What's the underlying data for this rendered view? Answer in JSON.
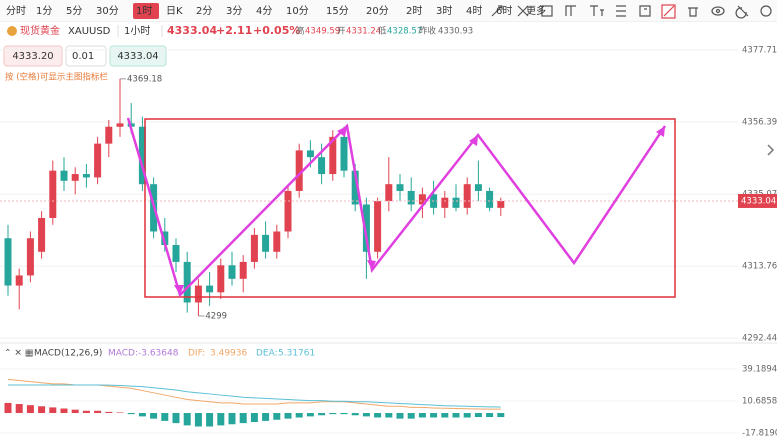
{
  "toolbar": {
    "intervals": [
      "分时",
      "1分",
      "5分",
      "30分",
      "1时",
      "日K",
      "2分",
      "3分",
      "4分",
      "10分",
      "15分",
      "20分",
      "2时",
      "3时",
      "4时",
      "6时",
      "更多"
    ],
    "active": 4
  },
  "header": {
    "name": "现货黄金",
    "symbol": "XAUUSD",
    "period": "1小时",
    "price": "4333.04",
    "change": "+2.11",
    "change_pct": "+0.05%",
    "high_label": "高",
    "high": 4349.59,
    "open_label": "开",
    "open": 4331.24,
    "low_label": "低",
    "low": 4328.57,
    "prev_label": "昨收",
    "prev": 4330.93
  },
  "quote": {
    "bid": "4333.20",
    "qty": "0.01",
    "ask": "4333.04"
  },
  "hint": "按 (空格)可显示主图指标栏",
  "chart_data": [
    {
      "type": "candlestick",
      "up_color": "#e0424f",
      "down_color": "#26a69a",
      "open": [
        4322,
        4308,
        4311,
        4318,
        4328,
        4342,
        4339,
        4341,
        4340,
        4350,
        4355,
        4356,
        4355,
        4338,
        4324,
        4320,
        4315,
        4303,
        4308,
        4306,
        4314,
        4310,
        4315,
        4323,
        4318,
        4324,
        4336,
        4348,
        4346,
        4341,
        4352,
        4342,
        4332,
        4318,
        4333,
        4338,
        4336,
        4332,
        4335,
        4331,
        4334,
        4331,
        4338,
        4336,
        4331
      ],
      "high": [
        4326,
        4313,
        4324,
        4330,
        4345,
        4346,
        4343,
        4344,
        4352,
        4357,
        4369.18,
        4362,
        4358,
        4340,
        4328,
        4322,
        4318,
        4310,
        4312,
        4316,
        4318,
        4317,
        4325,
        4327,
        4326,
        4338,
        4350,
        4351,
        4350,
        4354,
        4355,
        4344,
        4334,
        4334,
        4346,
        4341,
        4340,
        4337,
        4339,
        4336,
        4338,
        4340,
        4345,
        4337,
        4334
      ],
      "low": [
        4305,
        4300.97,
        4309,
        4316,
        4326,
        4336,
        4335,
        4337,
        4338,
        4346,
        4352,
        4353,
        4336,
        4322,
        4318,
        4312,
        4300,
        4299,
        4302,
        4304,
        4308,
        4306,
        4313,
        4316,
        4316,
        4322,
        4334,
        4343,
        4338,
        4339,
        4340,
        4330,
        4310,
        4316,
        4330,
        4333,
        4330,
        4328,
        4329,
        4328,
        4330,
        4329,
        4333,
        4330,
        4328.57
      ],
      "close": [
        4308,
        4311,
        4322,
        4328,
        4342,
        4339,
        4341,
        4340,
        4350,
        4355,
        4356,
        4355,
        4338,
        4324,
        4320,
        4315,
        4303,
        4308,
        4306,
        4314,
        4310,
        4315,
        4323,
        4318,
        4324,
        4336,
        4348,
        4346,
        4341,
        4352,
        4342,
        4332,
        4318,
        4333,
        4338,
        4336,
        4332,
        4335,
        4331,
        4334,
        4331,
        4338,
        4336,
        4331,
        4333.04
      ],
      "ylim": [
        4291.3,
        4380.67
      ],
      "yticks": [
        4377.71,
        4356.39,
        4335.07,
        4313.76,
        4292.44
      ],
      "grid": true
    },
    {
      "type": "macd",
      "title": "MACD(12,26,9)",
      "hist_name": "MACD:",
      "hist_up_color": "#e0424f",
      "hist_down_color": "#26a69a",
      "hist": [
        9,
        8,
        7,
        6,
        5,
        4,
        3,
        2,
        2,
        1,
        0.5,
        -1,
        -3,
        -5,
        -7,
        -9,
        -11,
        -12,
        -12,
        -11,
        -10,
        -9,
        -8,
        -7,
        -6,
        -5,
        -4,
        -3,
        -2,
        -1,
        -1,
        -2,
        -3,
        -4,
        -4,
        -5,
        -5,
        -4,
        -4,
        -4,
        -4,
        -4,
        -3.6,
        -3.6,
        -3.63648
      ],
      "series": [
        {
          "name": "DIF:",
          "color": "#f0a868",
          "values": [
            30,
            29,
            28,
            27,
            26,
            26,
            25,
            25,
            25,
            24,
            23,
            22,
            20,
            18,
            16,
            14,
            12,
            11,
            10,
            9,
            9,
            8,
            8,
            8,
            8,
            9,
            9,
            9,
            10,
            10,
            10,
            9,
            8,
            7,
            6,
            6,
            5,
            5,
            4.5,
            4.2,
            4,
            3.8,
            3.6,
            3.5,
            3.49936
          ]
        },
        {
          "name": "DEA:",
          "color": "#5bbfd6",
          "values": [
            25,
            25,
            25,
            25,
            25,
            25,
            25,
            25,
            25,
            24.8,
            24.5,
            24,
            23.5,
            22.5,
            21.5,
            20.5,
            19,
            18,
            17,
            16,
            15,
            14,
            13.5,
            13,
            12.5,
            12,
            11.5,
            11,
            11,
            10.5,
            10.5,
            10,
            10,
            9.5,
            9,
            8.5,
            8,
            7.5,
            7,
            6.5,
            6.2,
            6,
            5.7,
            5.5,
            5.31761
          ]
        }
      ],
      "ylim": [
        -27.6,
        60.6
      ],
      "yticks": [
        39.18942,
        {
          "value": 10.6858,
          "label": "10.68580"
        },
        -17.81904
      ]
    }
  ]
}
